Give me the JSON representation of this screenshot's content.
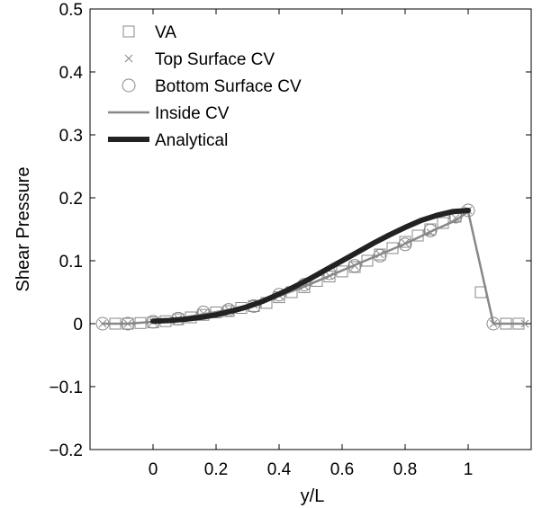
{
  "chart_data": {
    "type": "line",
    "xlabel": "y/L",
    "ylabel": "Shear Pressure",
    "xlim": [
      -0.2,
      1.2
    ],
    "ylim": [
      -0.2,
      0.5
    ],
    "xticks": [
      0,
      0.2,
      0.4,
      0.6,
      0.8,
      1
    ],
    "xtick_labels": [
      "0",
      "0.2",
      "0.4",
      "0.6",
      "0.8",
      "1"
    ],
    "yticks": [
      -0.2,
      -0.1,
      0,
      0.1,
      0.2,
      0.3,
      0.4,
      0.5
    ],
    "ytick_labels": [
      "−0.2",
      "−0.1",
      "0",
      "0.1",
      "0.2",
      "0.3",
      "0.4",
      "0.5"
    ],
    "grid": false,
    "legend_position": "top-left",
    "series": [
      {
        "name": "VA",
        "marker": "square",
        "color": "#888888",
        "x": [
          -0.12,
          -0.08,
          -0.04,
          0,
          0.04,
          0.08,
          0.12,
          0.16,
          0.2,
          0.24,
          0.28,
          0.32,
          0.36,
          0.4,
          0.44,
          0.48,
          0.52,
          0.56,
          0.6,
          0.64,
          0.68,
          0.72,
          0.76,
          0.8,
          0.84,
          0.88,
          0.92,
          0.96,
          1.04,
          1.12,
          1.16
        ],
        "y": [
          0,
          0,
          0.001,
          0.002,
          0.004,
          0.007,
          0.01,
          0.014,
          0.018,
          0.02,
          0.025,
          0.028,
          0.033,
          0.042,
          0.05,
          0.058,
          0.068,
          0.075,
          0.083,
          0.09,
          0.1,
          0.11,
          0.12,
          0.13,
          0.14,
          0.15,
          0.16,
          0.17,
          0.05,
          0,
          0
        ]
      },
      {
        "name": "Top Surface CV",
        "marker": "x",
        "color": "#888888",
        "x": [
          -0.16,
          -0.08,
          0,
          0.08,
          0.16,
          0.24,
          0.32,
          0.4,
          0.48,
          0.56,
          0.64,
          0.72,
          0.8,
          0.88,
          0.96,
          1,
          1.08,
          1.18
        ],
        "y": [
          0,
          0,
          0.003,
          0.008,
          0.016,
          0.022,
          0.03,
          0.045,
          0.06,
          0.076,
          0.092,
          0.11,
          0.128,
          0.145,
          0.168,
          0.18,
          0,
          0
        ]
      },
      {
        "name": "Bottom Surface CV",
        "marker": "circle",
        "color": "#888888",
        "x": [
          -0.16,
          -0.08,
          0,
          0.08,
          0.16,
          0.24,
          0.32,
          0.4,
          0.48,
          0.56,
          0.64,
          0.72,
          0.8,
          0.88,
          0.96,
          1,
          1.08
        ],
        "y": [
          0,
          0,
          0.003,
          0.008,
          0.018,
          0.022,
          0.028,
          0.046,
          0.062,
          0.08,
          0.092,
          0.108,
          0.126,
          0.148,
          0.17,
          0.18,
          0
        ]
      },
      {
        "name": "Inside CV",
        "marker": "line",
        "color": "#888888",
        "x": [
          -0.16,
          -0.08,
          0,
          0.08,
          0.16,
          0.24,
          0.32,
          0.4,
          0.48,
          0.56,
          0.64,
          0.72,
          0.8,
          0.88,
          0.96,
          1,
          1.08,
          1.18
        ],
        "y": [
          0,
          0,
          0.003,
          0.008,
          0.015,
          0.022,
          0.031,
          0.044,
          0.059,
          0.076,
          0.093,
          0.11,
          0.127,
          0.146,
          0.164,
          0.178,
          0,
          0
        ]
      },
      {
        "name": "Analytical",
        "marker": "thick-line",
        "color": "#222222",
        "x": [
          0,
          0.05,
          0.1,
          0.15,
          0.2,
          0.25,
          0.3,
          0.35,
          0.4,
          0.45,
          0.5,
          0.55,
          0.6,
          0.65,
          0.7,
          0.75,
          0.8,
          0.85,
          0.9,
          0.95,
          1
        ],
        "y": [
          0.004,
          0.005,
          0.007,
          0.01,
          0.014,
          0.02,
          0.027,
          0.036,
          0.047,
          0.059,
          0.072,
          0.086,
          0.1,
          0.114,
          0.128,
          0.141,
          0.153,
          0.164,
          0.172,
          0.178,
          0.18
        ]
      }
    ]
  }
}
